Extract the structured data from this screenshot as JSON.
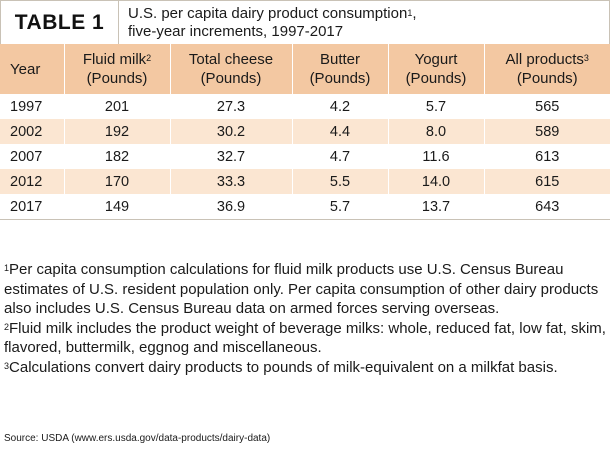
{
  "table": {
    "label": "TABLE 1",
    "caption": {
      "line1": "U.S. per capita dairy product consumption",
      "line1_sup": "1",
      "line2_text": ",",
      "line2": "five-year increments, 1997-2017"
    },
    "columns": [
      {
        "line1": "Year",
        "sup": "",
        "line2": ""
      },
      {
        "line1": "Fluid milk",
        "sup": "2",
        "line2": "(Pounds)"
      },
      {
        "line1": "Total cheese",
        "sup": "",
        "line2": "(Pounds)"
      },
      {
        "line1": "Butter",
        "sup": "",
        "line2": "(Pounds)"
      },
      {
        "line1": "Yogurt",
        "sup": "",
        "line2": "(Pounds)"
      },
      {
        "line1": "All products",
        "sup": "3",
        "line2": "(Pounds)"
      }
    ],
    "rows": [
      [
        "1997",
        "201",
        "27.3",
        "4.2",
        "5.7",
        "565"
      ],
      [
        "2002",
        "192",
        "30.2",
        "4.4",
        "8.0",
        "589"
      ],
      [
        "2007",
        "182",
        "32.7",
        "4.7",
        "11.6",
        "613"
      ],
      [
        "2012",
        "170",
        "33.3",
        "5.5",
        "14.0",
        "615"
      ],
      [
        "2017",
        "149",
        "36.9",
        "5.7",
        "13.7",
        "643"
      ]
    ]
  },
  "footnotes": [
    {
      "mark": "1",
      "text": "Per capita consumption calculations for fluid milk products use U.S. Census Bureau estimates of U.S. resident population only. Per capita consumption of other dairy products also includes U.S. Census Bureau data on armed forces serving overseas."
    },
    {
      "mark": "2",
      "text": "Fluid milk includes the product weight of beverage milks: whole, reduced fat, low fat, skim, flavored, buttermilk, eggnog and miscellaneous."
    },
    {
      "mark": "3",
      "text": "Calculations convert dairy products to pounds of milk-equivalent on a milkfat basis."
    }
  ],
  "source": "Source: USDA (www.ers.usda.gov/data-products/dairy-data)",
  "colors": {
    "header_bg": "#f3c8a2",
    "stripe_bg": "#fbe6d2",
    "border": "#c9c2b6"
  }
}
